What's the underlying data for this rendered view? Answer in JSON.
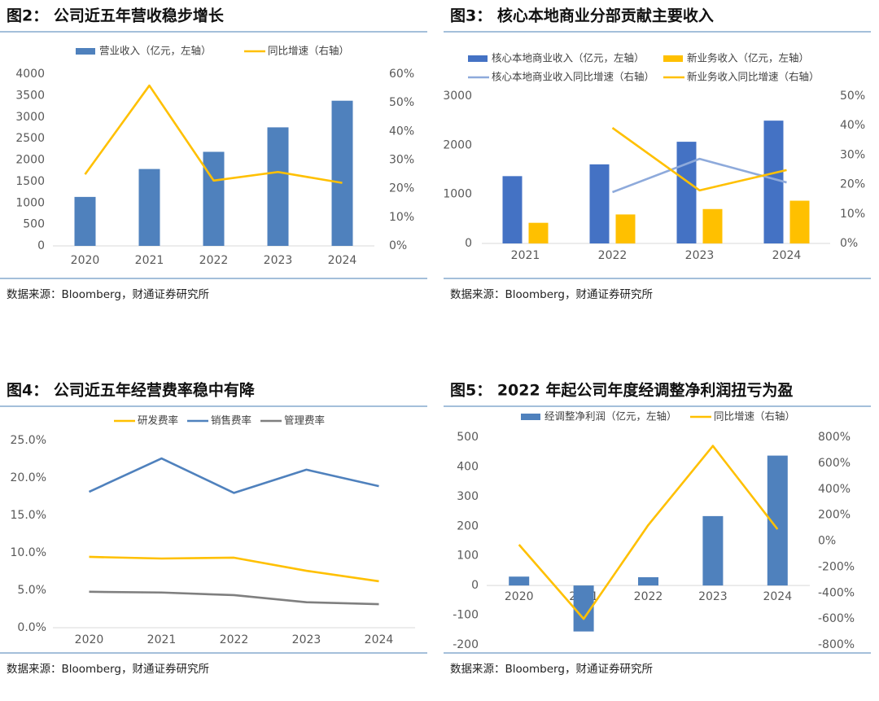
{
  "chart_data": [
    {
      "type": "combo",
      "title": "图2： 公司近五年营收稳步增长",
      "source": "数据来源：Bloomberg，财通证券研究所",
      "categories": [
        "2020",
        "2021",
        "2022",
        "2023",
        "2024"
      ],
      "series": [
        {
          "name": "营业收入（亿元，左轴）",
          "type": "bar",
          "color": "#4f81bd",
          "values": [
            1140,
            1790,
            2190,
            2760,
            3380
          ]
        },
        {
          "name": "同比增速（右轴）",
          "type": "line",
          "axis": "y2",
          "color": "#ffc000",
          "values": [
            25,
            56,
            22.8,
            25.8,
            22
          ]
        }
      ],
      "ylim": [
        0,
        4000
      ],
      "yticks": [
        0,
        500,
        1000,
        1500,
        2000,
        2500,
        3000,
        3500,
        4000
      ],
      "y2lim": [
        0,
        60
      ],
      "y2ticks": [
        {
          "value": 0,
          "label": "0%"
        },
        {
          "value": 10,
          "label": "10%"
        },
        {
          "value": 20,
          "label": "20%"
        },
        {
          "value": 30,
          "label": "30%"
        },
        {
          "value": 40,
          "label": "40%"
        },
        {
          "value": 50,
          "label": "50%"
        },
        {
          "value": 60,
          "label": "60%"
        }
      ]
    },
    {
      "type": "combo",
      "title": "图3： 核心本地商业分部贡献主要收入",
      "source": "数据来源：Bloomberg，财通证券研究所",
      "categories": [
        "2021",
        "2022",
        "2023",
        "2024"
      ],
      "series": [
        {
          "name": "核心本地商业收入（亿元，左轴）",
          "type": "bar",
          "color": "#4472c4",
          "values": [
            1370,
            1610,
            2070,
            2500
          ]
        },
        {
          "name": "新业务收入（亿元，左轴）",
          "type": "bar",
          "color": "#ffc000",
          "values": [
            420,
            590,
            700,
            870
          ]
        },
        {
          "name": "核心本地商业收入同比增速（右轴）",
          "type": "line",
          "axis": "y2",
          "color": "#8eaadb",
          "values": [
            null,
            17.4,
            28.7,
            20.7
          ]
        },
        {
          "name": "新业务收入同比增速（右轴）",
          "type": "line",
          "axis": "y2",
          "color": "#ffc000",
          "values": [
            null,
            39.2,
            18,
            24.9
          ]
        }
      ],
      "ylim": [
        0,
        3000
      ],
      "yticks": [
        0,
        1000,
        2000,
        3000
      ],
      "y2lim": [
        0,
        50
      ],
      "y2ticks": [
        {
          "value": 0,
          "label": "0%"
        },
        {
          "value": 10,
          "label": "10%"
        },
        {
          "value": 20,
          "label": "20%"
        },
        {
          "value": 30,
          "label": "30%"
        },
        {
          "value": 40,
          "label": "40%"
        },
        {
          "value": 50,
          "label": "50%"
        }
      ]
    },
    {
      "type": "line",
      "title": "图4： 公司近五年经营费率稳中有降",
      "source": "数据来源：Bloomberg，财通证券研究所",
      "categories": [
        "2020",
        "2021",
        "2022",
        "2023",
        "2024"
      ],
      "series": [
        {
          "name": "研发费率",
          "type": "line",
          "color": "#ffc000",
          "values": [
            9.46,
            9.24,
            9.35,
            7.6,
            6.2
          ]
        },
        {
          "name": "销售费率",
          "type": "line",
          "color": "#4f81bd",
          "values": [
            18.15,
            22.6,
            18,
            21.1,
            18.9
          ]
        },
        {
          "name": "管理费率",
          "type": "line",
          "color": "#7f7f7f",
          "values": [
            4.8,
            4.7,
            4.35,
            3.4,
            3.15
          ]
        }
      ],
      "ylim": [
        0,
        25
      ],
      "yticks": [
        {
          "value": 0,
          "label": "0.0%"
        },
        {
          "value": 5,
          "label": "5.0%"
        },
        {
          "value": 10,
          "label": "10.0%"
        },
        {
          "value": 15,
          "label": "15.0%"
        },
        {
          "value": 20,
          "label": "20.0%"
        },
        {
          "value": 25,
          "label": "25.0%"
        }
      ]
    },
    {
      "type": "combo",
      "title": "图5： 2022 年起公司年度经调整净利润扭亏为盈",
      "source": "数据来源：Bloomberg，财通证券研究所",
      "categories": [
        "2020",
        "2021",
        "2022",
        "2023",
        "2024"
      ],
      "series": [
        {
          "name": "经调整净利润（亿元，左轴）",
          "type": "bar",
          "color": "#4f81bd",
          "values": [
            30,
            -155,
            28,
            234,
            438
          ]
        },
        {
          "name": "同比增速（右轴）",
          "type": "line",
          "axis": "y2",
          "color": "#ffc000",
          "values": [
            -28,
            -600,
            123,
            733,
            91
          ]
        }
      ],
      "ylim": [
        -200,
        500
      ],
      "yticks": [
        -200,
        -100,
        0,
        100,
        200,
        300,
        400,
        500
      ],
      "y2lim": [
        -800,
        800
      ],
      "y2ticks": [
        {
          "value": -800,
          "label": "-800%"
        },
        {
          "value": -600,
          "label": "-600%"
        },
        {
          "value": -400,
          "label": "-400%"
        },
        {
          "value": -200,
          "label": "-200%"
        },
        {
          "value": 0,
          "label": "0%"
        },
        {
          "value": 200,
          "label": "200%"
        },
        {
          "value": 400,
          "label": "400%"
        },
        {
          "value": 600,
          "label": "600%"
        },
        {
          "value": 800,
          "label": "800%"
        }
      ]
    }
  ]
}
